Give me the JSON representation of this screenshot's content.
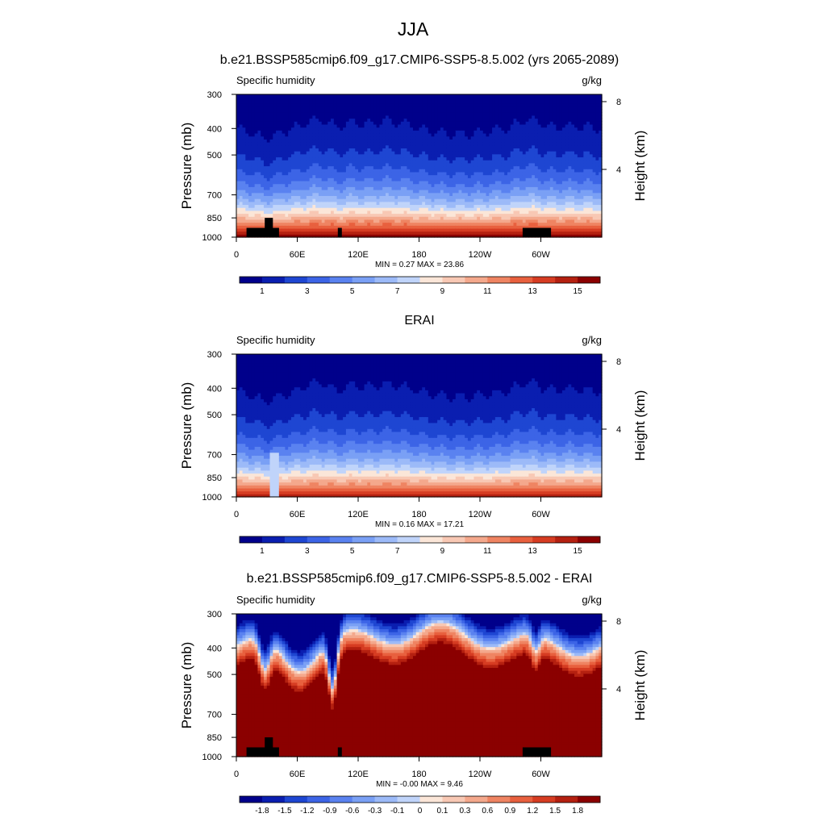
{
  "figure": {
    "title": "JJA"
  },
  "palette": {
    "sequential": [
      "#00008b",
      "#0a1eb0",
      "#1e46d2",
      "#3c64e6",
      "#5a82f0",
      "#7aa0f5",
      "#9cbaf8",
      "#c0d4fa",
      "#fbe6d8",
      "#f8c8b4",
      "#f4a88c",
      "#ef8462",
      "#e8603e",
      "#d63c22",
      "#b42010",
      "#8b0000"
    ],
    "diverging": [
      "#00008b",
      "#0a1eb0",
      "#1e46d2",
      "#3c64e6",
      "#5a82f0",
      "#7aa0f5",
      "#9cbaf8",
      "#c0d4fa",
      "#fbe6d8",
      "#f8c8b4",
      "#f4a88c",
      "#ef8462",
      "#e8603e",
      "#d63c22",
      "#b42010",
      "#8b0000"
    ]
  },
  "chart_data": [
    {
      "type": "heatmap",
      "id": "model",
      "title": "b.e21.BSSP585cmip6.f09_g17.CMIP6-SSP5-8.5.002 (yrs 2065-2089)",
      "left_label": "Specific humidity",
      "right_label": "g/kg",
      "ylabel": "Pressure (mb)",
      "y2label": "Height (km)",
      "x_ticks": [
        "0",
        "60E",
        "120E",
        "180",
        "120W",
        "60W"
      ],
      "x_tick_lon": [
        0,
        60,
        120,
        180,
        240,
        300
      ],
      "xlim": [
        0,
        360
      ],
      "y_ticks": [
        "300",
        "400",
        "500",
        "700",
        "850",
        "1000"
      ],
      "y_tick_p": [
        300,
        400,
        500,
        700,
        850,
        1000
      ],
      "ylim": [
        1000,
        300
      ],
      "y2_ticks": [
        "8",
        "4"
      ],
      "y2_tick_km": [
        8,
        4
      ],
      "stats": "MIN =   0.27  MAX =  23.86",
      "min": 0.27,
      "max": 23.86,
      "colorbar_labels": [
        "1",
        "3",
        "5",
        "7",
        "9",
        "11",
        "13",
        "15"
      ],
      "field": "humidity",
      "topography": true
    },
    {
      "type": "heatmap",
      "id": "obs",
      "title": "ERAI",
      "left_label": "Specific humidity",
      "right_label": "g/kg",
      "ylabel": "Pressure (mb)",
      "y2label": "Height (km)",
      "x_ticks": [
        "0",
        "60E",
        "120E",
        "180",
        "120W",
        "60W"
      ],
      "x_tick_lon": [
        0,
        60,
        120,
        180,
        240,
        300
      ],
      "xlim": [
        0,
        360
      ],
      "y_ticks": [
        "300",
        "400",
        "500",
        "700",
        "850",
        "1000"
      ],
      "y_tick_p": [
        300,
        400,
        500,
        700,
        850,
        1000
      ],
      "ylim": [
        1000,
        300
      ],
      "y2_ticks": [
        "8",
        "4"
      ],
      "y2_tick_km": [
        8,
        4
      ],
      "stats": "MIN =   0.16  MAX =  17.21",
      "min": 0.16,
      "max": 17.21,
      "colorbar_labels": [
        "1",
        "3",
        "5",
        "7",
        "9",
        "11",
        "13",
        "15"
      ],
      "field": "humidity_obs",
      "topography": false
    },
    {
      "type": "heatmap",
      "id": "diff",
      "title": "b.e21.BSSP585cmip6.f09_g17.CMIP6-SSP5-8.5.002 - ERAI",
      "left_label": "Specific humidity",
      "right_label": "g/kg",
      "ylabel": "Pressure (mb)",
      "y2label": "Height (km)",
      "x_ticks": [
        "0",
        "60E",
        "120E",
        "180",
        "120W",
        "60W"
      ],
      "x_tick_lon": [
        0,
        60,
        120,
        180,
        240,
        300
      ],
      "xlim": [
        0,
        360
      ],
      "y_ticks": [
        "300",
        "400",
        "500",
        "700",
        "850",
        "1000"
      ],
      "y_tick_p": [
        300,
        400,
        500,
        700,
        850,
        1000
      ],
      "ylim": [
        1000,
        300
      ],
      "y2_ticks": [
        "8",
        "4"
      ],
      "y2_tick_km": [
        8,
        4
      ],
      "stats": "MIN =  -0.00  MAX =   9.46",
      "min": -0.0,
      "max": 9.46,
      "colorbar_labels": [
        "-1.8",
        "-1.5",
        "-1.2",
        "-0.9",
        "-0.6",
        "-0.3",
        "-0.1",
        "0",
        "0.1",
        "0.3",
        "0.6",
        "0.9",
        "1.2",
        "1.5",
        "1.8"
      ],
      "field": "difference",
      "topography": true
    }
  ]
}
